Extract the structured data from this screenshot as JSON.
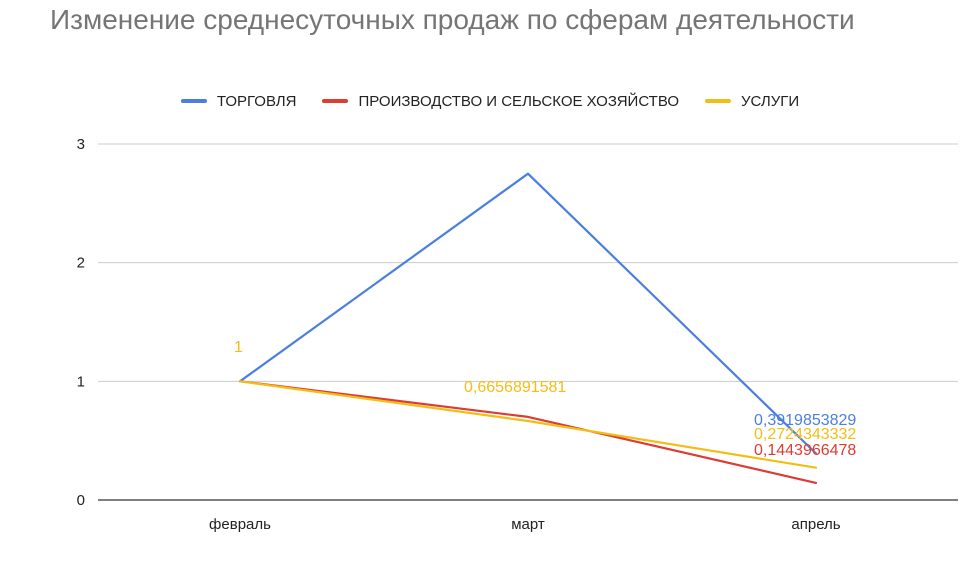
{
  "colors": {
    "gridline": "#cccccc",
    "baseline": "#333333"
  },
  "chart_data": {
    "type": "line",
    "title": "Изменение среднесуточных продаж по сферам деятельности",
    "categories": [
      "февраль",
      "март",
      "апрель"
    ],
    "ylim": [
      0,
      3
    ],
    "yticks": [
      "0",
      "1",
      "2",
      "3"
    ],
    "grid": true,
    "legend_position": "top",
    "series": [
      {
        "name": "ТОРГОВЛЯ",
        "color": "#4a7fe0",
        "values": [
          1,
          2.75,
          0.3919853829
        ],
        "data_labels": [
          "",
          "",
          "0,3919853829"
        ]
      },
      {
        "name": "ПРОИЗВОДСТВО И СЕЛЬСКОЕ ХОЗЯЙСТВО",
        "color": "#dc3c32",
        "values": [
          1,
          0.7,
          0.1443966478
        ],
        "data_labels": [
          "",
          "",
          "0,1443966478"
        ]
      },
      {
        "name": "УСЛУГИ",
        "color": "#f2be16",
        "values": [
          1,
          0.6656891581,
          0.2724343332
        ],
        "data_labels": [
          "1",
          "0,6656891581",
          "0,2724343332"
        ]
      }
    ]
  }
}
